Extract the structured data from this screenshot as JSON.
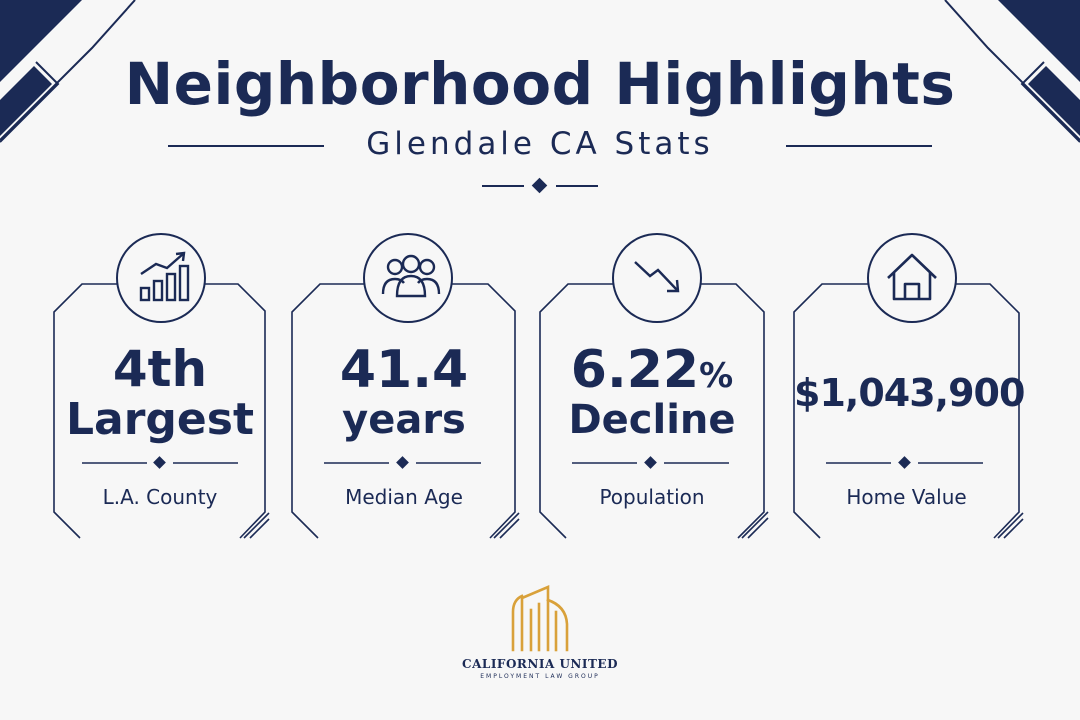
{
  "header": {
    "title": "Neighborhood Highlights",
    "subtitle": "Glendale CA Stats"
  },
  "stats": [
    {
      "value": "4th",
      "value_line2": "Largest",
      "label": "L.A. County",
      "icon": "growth-chart-icon"
    },
    {
      "value": "41.4",
      "value_line2": "years",
      "label": "Median Age",
      "icon": "people-group-icon"
    },
    {
      "value": "6.22",
      "value_suffix": "%",
      "value_line2": "Decline",
      "label": "Population",
      "icon": "trend-down-icon"
    },
    {
      "value": "$1,043,900",
      "label": "Home Value",
      "icon": "house-icon"
    }
  ],
  "logo": {
    "name": "CALIFORNIA UNITED",
    "tagline": "EMPLOYMENT LAW GROUP"
  },
  "colors": {
    "navy": "#1b2a55",
    "gold": "#d9a13a",
    "background": "#f7f7f7"
  }
}
